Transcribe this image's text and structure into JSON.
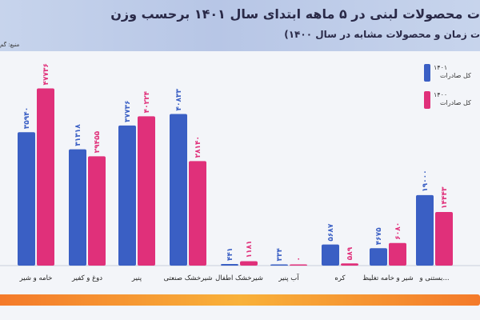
{
  "title": "ت محصولات لبنی در ۵ ماهه ابتدای سال ۱۴۰۱ برحسب وزن",
  "subtitle": "ت زمان و محصولات مشابه در سال ۱۴۰۰)",
  "source": "منبع: گم",
  "legend": [
    {
      "year": "۱۴۰۱",
      "label": "کل صادرات",
      "color": "#3a5fc4"
    },
    {
      "year": "۱۴۰۰",
      "label": "کل صادرات",
      "color": "#e0307a"
    }
  ],
  "chart_data": {
    "type": "bar",
    "title": "ت محصولات لبنی در ۵ ماهه ابتدای سال ۱۴۰۱ برحسب وزن",
    "categories": [
      "خامه و شیر",
      "دوغ و کفیر",
      "پنیر",
      "شیرخشک صنعتی",
      "شیرخشک اطفال",
      "آب پنیر",
      "کره",
      "شیر و خامه تغلیظ",
      "بستنی و..."
    ],
    "series": [
      {
        "name": "۱۴۰۱",
        "values": [
          35940,
          31318,
          37736,
          40833,
          441,
          334,
          5687,
          4675,
          19000
        ]
      },
      {
        "name": "۱۴۰۰",
        "values": [
          47736,
          29455,
          40224,
          28140,
          1181,
          0,
          589,
          6080,
          14443
        ]
      }
    ],
    "value_labels": {
      "1401": [
        "۳۵۹۴۰",
        "۳۱۳۱۸",
        "۳۷۷۳۶",
        "۴۰۸۳۳",
        "۴۴۱",
        "۳۳۴",
        "۵۶۸۷",
        "۴۶۷۵",
        "۱۹۰۰۰"
      ],
      "1400": [
        "۴۷۷۳۶",
        "۲۹۴۵۵",
        "۴۰۲۲۴",
        "۲۸۱۴۰",
        "۱۱۸۱",
        "۰",
        "۵۸۹",
        "۶۰۸۰",
        "۱۴۴۴۳"
      ]
    },
    "ylim": [
      0,
      50000
    ],
    "grid": false,
    "legend_position": "right"
  }
}
